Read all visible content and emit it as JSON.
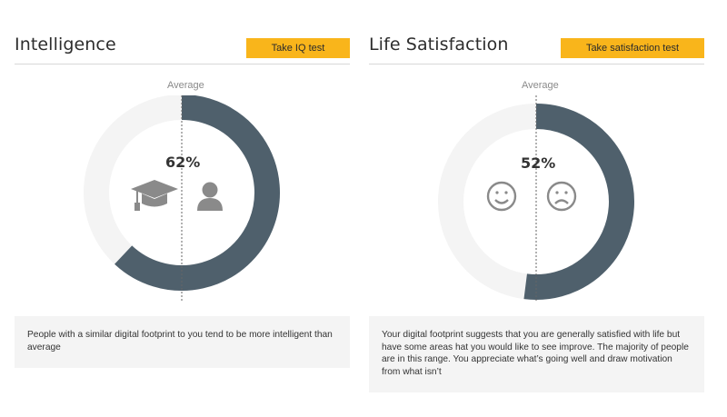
{
  "intelligence": {
    "title": "Intelligence",
    "button_label": "Take IQ test",
    "average_label": "Average",
    "percent_label": "62%",
    "percent_value": 62,
    "description": "People with a similar digital footprint to you tend to be more intelligent than average",
    "icons": [
      "graduation-cap-icon",
      "person-icon"
    ]
  },
  "life_satisfaction": {
    "title": "Life Satisfaction",
    "button_label": "Take satisfaction test",
    "average_label": "Average",
    "percent_label": "52%",
    "percent_value": 52,
    "description": "Your digital footprint suggests that you are generally satisfied with life but have some areas hat you would like to see improve. The majority of people are in this range. You appreciate what’s going well and draw motivation from what isn’t",
    "icons": [
      "smiley-face-icon",
      "sad-face-icon"
    ]
  },
  "colors": {
    "accent": "#f9b51b",
    "gauge_fill": "#4f606c",
    "gauge_track": "#f4f4f4",
    "icon": "#8a8a8a"
  }
}
